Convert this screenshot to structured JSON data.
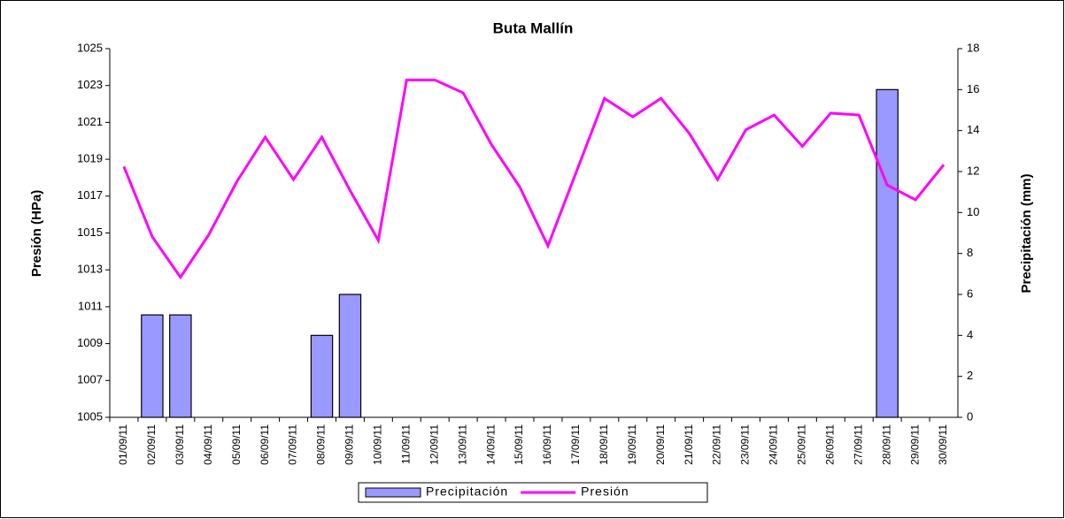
{
  "chart_data": {
    "type": "bar-line",
    "title": "Buta Mallín",
    "y_label": "Presión (HPa)",
    "y2_label": "Precipitación (mm)",
    "categories": [
      "01/09/11",
      "02/09/11",
      "03/09/11",
      "04/09/11",
      "05/09/11",
      "06/09/11",
      "07/09/11",
      "08/09/11",
      "09/09/11",
      "10/09/11",
      "11/09/11",
      "12/09/11",
      "13/09/11",
      "14/09/11",
      "15/09/11",
      "16/09/11",
      "17/09/11",
      "18/09/11",
      "19/09/11",
      "20/09/11",
      "21/09/11",
      "22/09/11",
      "23/09/11",
      "24/09/11",
      "25/09/11",
      "26/09/11",
      "27/09/11",
      "28/09/11",
      "29/09/11",
      "30/09/11"
    ],
    "series": [
      {
        "name": "Precipitación",
        "type": "bar",
        "axis": "y2",
        "color": "#9999ff",
        "values": [
          0,
          5,
          5,
          0,
          0,
          0,
          0,
          4,
          6,
          0,
          0,
          0,
          0,
          0,
          0,
          0,
          0,
          0,
          0,
          0,
          0,
          0,
          0,
          0,
          0,
          0,
          0,
          16,
          0,
          0
        ]
      },
      {
        "name": "Presión",
        "type": "line",
        "color": "#ff00ff",
        "values": [
          1018.6,
          1014.8,
          1012.6,
          1014.9,
          1017.8,
          1020.2,
          1017.9,
          1020.2,
          1017.3,
          1014.6,
          1023.3,
          1023.3,
          1022.6,
          1019.8,
          1017.5,
          1014.3,
          1018.3,
          1022.3,
          1021.3,
          1022.3,
          1020.4,
          1017.9,
          1020.6,
          1021.4,
          1019.7,
          1021.5,
          1021.4,
          1017.6,
          1016.8,
          1018.7
        ]
      }
    ],
    "ylim": [
      1005,
      1025
    ],
    "yticks": [
      1005,
      1007,
      1009,
      1011,
      1013,
      1015,
      1017,
      1019,
      1021,
      1023,
      1025
    ],
    "y2lim": [
      0,
      18
    ],
    "y2ticks": [
      0,
      2,
      4,
      6,
      8,
      10,
      12,
      14,
      16,
      18
    ],
    "legend": "bottom"
  }
}
